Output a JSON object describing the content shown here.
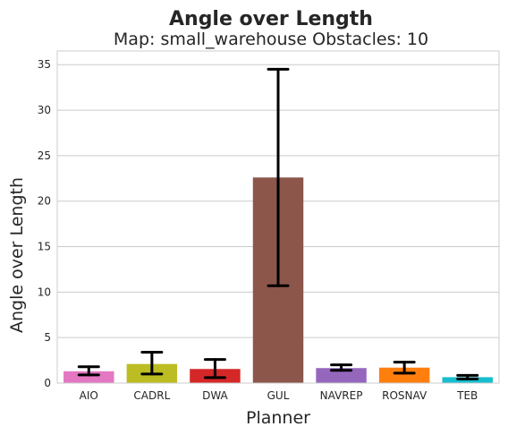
{
  "chart_data": {
    "type": "bar",
    "title": "Angle over Length",
    "subtitle": "Map: small_warehouse Obstacles: 10",
    "xlabel": "Planner",
    "ylabel": "Angle over Length",
    "ylim": [
      0,
      36.5
    ],
    "yticks": [
      0,
      5,
      10,
      15,
      20,
      25,
      30,
      35
    ],
    "grid": true,
    "categories": [
      "AIO",
      "CADRL",
      "DWA",
      "GUL",
      "NAVREP",
      "ROSNAV",
      "TEB"
    ],
    "values": [
      1.3,
      2.1,
      1.55,
      22.6,
      1.65,
      1.7,
      0.65
    ],
    "error_low": [
      0.9,
      1.0,
      0.6,
      10.7,
      1.4,
      1.1,
      0.45
    ],
    "error_high": [
      1.8,
      3.4,
      2.6,
      34.5,
      2.0,
      2.3,
      0.85
    ],
    "colors": [
      "#e377c2",
      "#bcbd22",
      "#d62728",
      "#8c564b",
      "#9467bd",
      "#ff7f0e",
      "#17becf"
    ]
  }
}
